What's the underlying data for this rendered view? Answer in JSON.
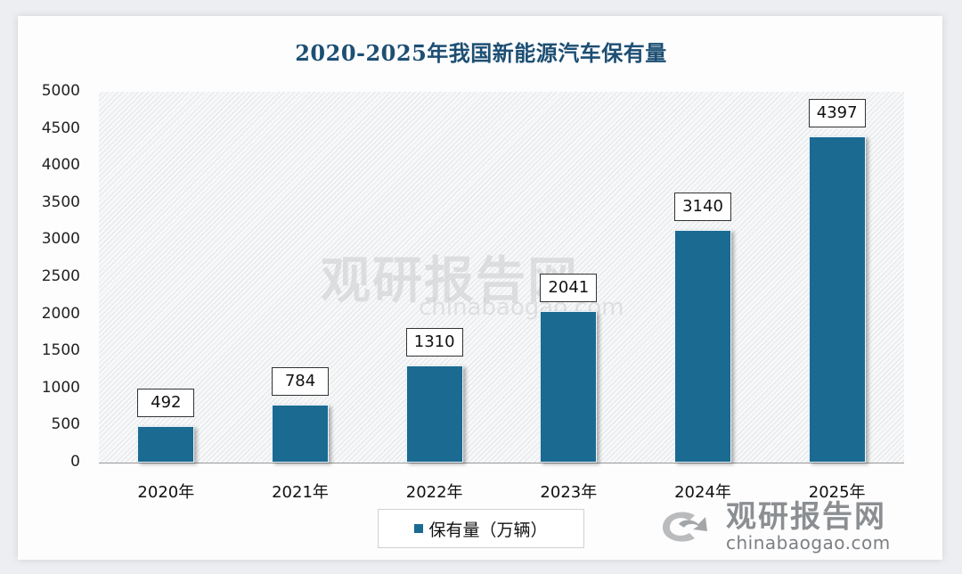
{
  "title": "2020-2025年我国新能源汽车保有量",
  "legend": {
    "label": "保有量（万辆）",
    "color": "#1b6a92"
  },
  "watermark": {
    "name": "观研报告网",
    "url": "chinabaogao.com"
  },
  "y_axis": {
    "ticks": [
      "5000",
      "4500",
      "4000",
      "3500",
      "3000",
      "2500",
      "2000",
      "1500",
      "1000",
      "500",
      "0"
    ]
  },
  "x_axis": {
    "labels": [
      "2020年",
      "2021年",
      "2022年",
      "2023年",
      "2024年",
      "2025年"
    ]
  },
  "bars": [
    {
      "label": "492"
    },
    {
      "label": "784"
    },
    {
      "label": "1310"
    },
    {
      "label": "2041"
    },
    {
      "label": "3140"
    },
    {
      "label": "4397"
    }
  ],
  "chart_data": {
    "type": "bar",
    "title": "2020-2025年我国新能源汽车保有量",
    "categories": [
      "2020年",
      "2021年",
      "2022年",
      "2023年",
      "2024年",
      "2025年"
    ],
    "series": [
      {
        "name": "保有量（万辆）",
        "values": [
          492,
          784,
          1310,
          2041,
          3140,
          4397
        ]
      }
    ],
    "xlabel": "",
    "ylabel": "",
    "ylim": [
      0,
      5000
    ],
    "yticks": [
      0,
      500,
      1000,
      1500,
      2000,
      2500,
      3000,
      3500,
      4000,
      4500,
      5000
    ],
    "grid": false,
    "legend_position": "bottom",
    "data_labels": true,
    "bar_color": "#1b6a92"
  }
}
